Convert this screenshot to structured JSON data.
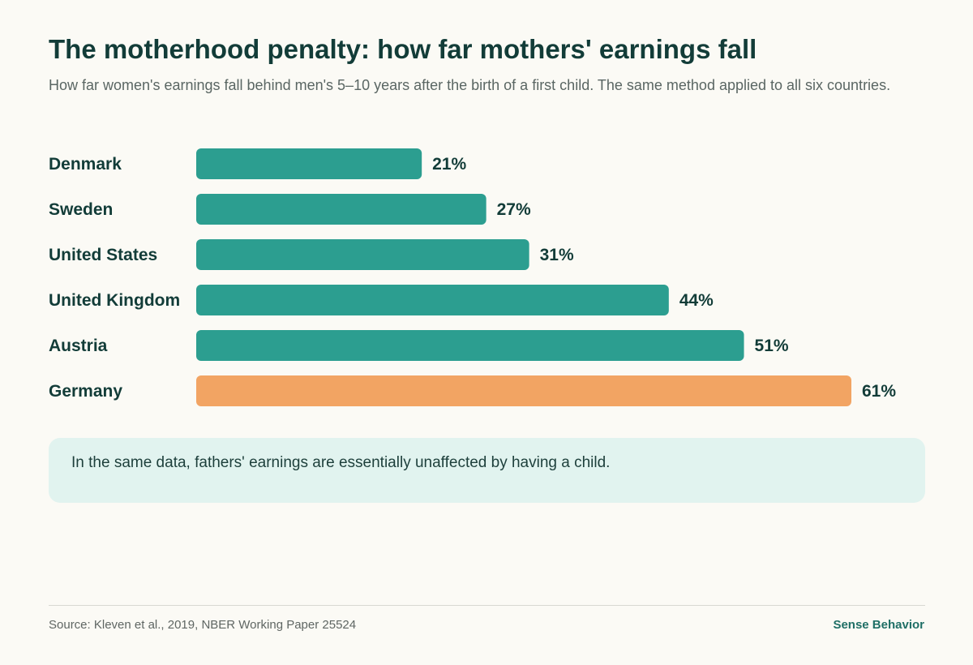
{
  "header": {
    "title": "The motherhood penalty: how far mothers' earnings fall",
    "subtitle": "How far women's earnings fall behind men's 5–10 years after the birth of a first child. The same method applied to all six countries."
  },
  "chart_data": {
    "type": "bar",
    "orientation": "horizontal",
    "categories": [
      "Denmark",
      "Sweden",
      "United States",
      "United Kingdom",
      "Austria",
      "Germany"
    ],
    "values": [
      21,
      27,
      31,
      44,
      51,
      61
    ],
    "value_labels": [
      "21%",
      "27%",
      "31%",
      "44%",
      "51%",
      "61%"
    ],
    "unit": "%",
    "xlim": [
      0,
      61
    ],
    "grid": false,
    "colors": {
      "default": "#2c9e90",
      "highlight": "#f2a463",
      "highlight_category": "Germany"
    }
  },
  "callout": {
    "text": "In the same data, fathers' earnings are essentially unaffected by having a child."
  },
  "footer": {
    "source": "Source: Kleven et al., 2019, NBER Working Paper 25524",
    "brand": "Sense Behavior"
  }
}
